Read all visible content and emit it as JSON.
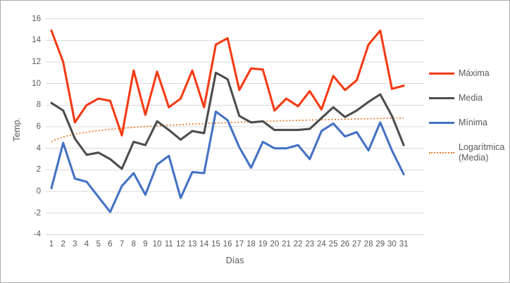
{
  "chart_data": {
    "type": "line",
    "title": "",
    "xlabel": "Días",
    "ylabel": "Temp.",
    "x": [
      1,
      2,
      3,
      4,
      5,
      6,
      7,
      8,
      9,
      10,
      11,
      12,
      13,
      14,
      15,
      16,
      17,
      18,
      19,
      20,
      21,
      22,
      23,
      24,
      25,
      26,
      27,
      28,
      29,
      30,
      31
    ],
    "y_ticks": [
      -4,
      -2,
      0,
      2,
      4,
      6,
      8,
      10,
      12,
      14,
      16
    ],
    "ylim": [
      -4,
      16
    ],
    "grid": true,
    "legend_position": "right",
    "series": [
      {
        "name": "Máxima",
        "color": "#f43b14",
        "style": "solid",
        "values": [
          14.9,
          12.0,
          6.4,
          8.0,
          8.6,
          8.4,
          5.2,
          11.2,
          7.1,
          11.1,
          7.8,
          8.6,
          11.2,
          7.8,
          13.6,
          14.2,
          9.4,
          11.4,
          11.3,
          7.5,
          8.6,
          7.9,
          9.3,
          7.6,
          10.7,
          9.4,
          10.3,
          13.6,
          14.9,
          9.5,
          9.8
        ]
      },
      {
        "name": "Media",
        "color": "#4d4d4d",
        "style": "solid",
        "values": [
          8.2,
          7.5,
          4.9,
          3.4,
          3.6,
          3.0,
          2.1,
          4.6,
          4.3,
          6.5,
          5.7,
          4.8,
          5.6,
          5.4,
          11.0,
          10.4,
          7.0,
          6.4,
          6.5,
          5.7,
          5.7,
          5.7,
          5.8,
          6.8,
          7.8,
          6.9,
          7.5,
          8.3,
          9.0,
          7.0,
          4.3
        ]
      },
      {
        "name": "Mínima",
        "color": "#4472c4",
        "style": "solid",
        "values": [
          0.3,
          4.5,
          1.2,
          0.9,
          -0.5,
          -1.9,
          0.5,
          1.7,
          -0.3,
          2.5,
          3.3,
          -0.6,
          1.8,
          1.7,
          7.4,
          6.6,
          4.1,
          2.2,
          4.6,
          4.0,
          4.0,
          4.3,
          3.0,
          5.6,
          6.3,
          5.1,
          5.5,
          3.8,
          6.4,
          3.8,
          1.6
        ]
      }
    ],
    "trendline": {
      "name": "Logarítmica (Media)",
      "of": "Media",
      "kind": "logarithmic",
      "color": "#ed7d31",
      "style": "dotted",
      "intercept": 4.6,
      "coef": 0.643,
      "start_value": 4.6,
      "end_value": 6.8
    },
    "colors": {
      "gridline": "#d9d9d9",
      "axis_text": "#595959",
      "frame_border": "#ababab"
    }
  }
}
